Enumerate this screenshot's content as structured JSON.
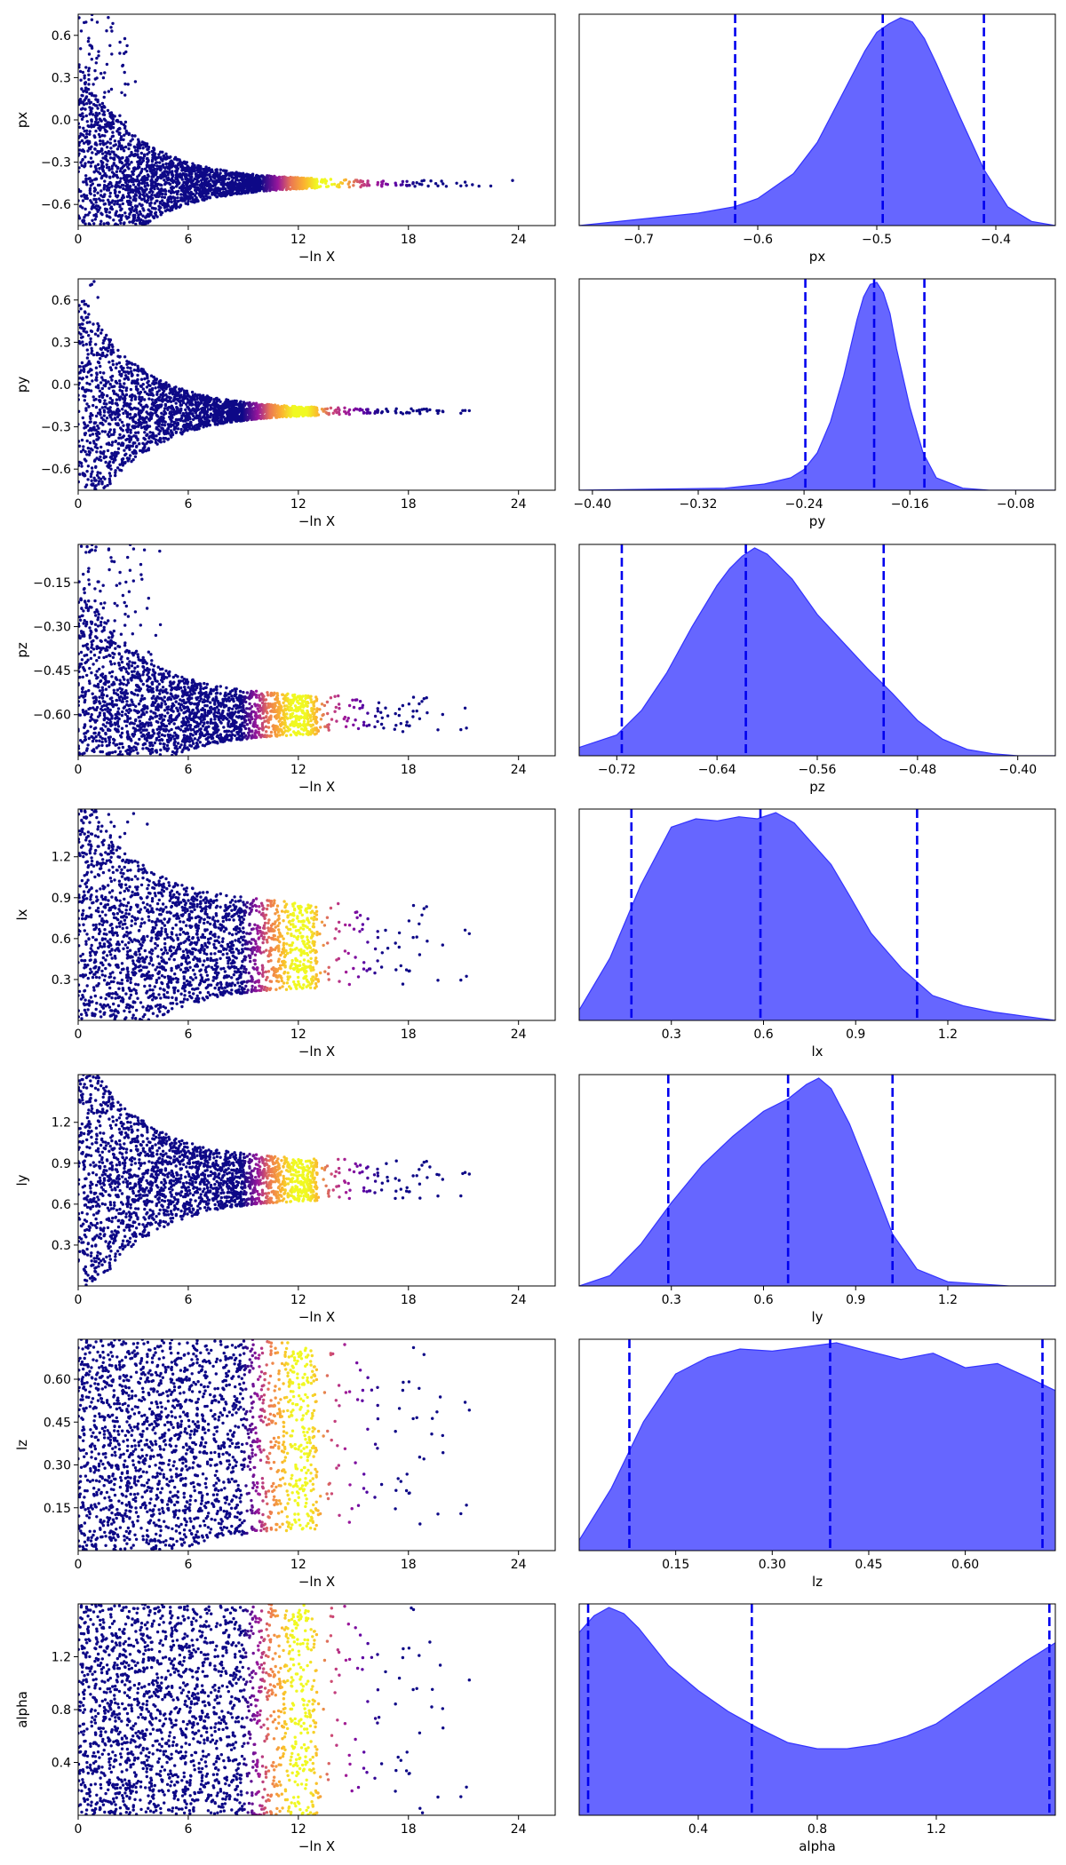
{
  "figure": {
    "colors": {
      "kde_fill": "#6666ff",
      "kde_line": "#3333ff",
      "quantile_line": "#0000ee",
      "colormap": [
        "#0d0887",
        "#5b02a3",
        "#9a179b",
        "#cb4678",
        "#eb7852",
        "#fbb32f",
        "#f0f921"
      ]
    }
  },
  "chart_data": [
    {
      "type": "scatter",
      "param": "px",
      "xlabel": "−ln X",
      "ylabel": "px",
      "xlim": [
        0,
        26
      ],
      "ylim": [
        -0.75,
        0.75
      ],
      "xticks": [
        "0",
        "6",
        "12",
        "18",
        "24"
      ],
      "yticks": [
        "0.6",
        "0.3",
        "0.0",
        "-0.3",
        "-0.6"
      ],
      "ytick_values": [
        0.6,
        0.3,
        0.0,
        -0.3,
        -0.6
      ],
      "converge_value": -0.45,
      "converge_halfwidth": 0.02,
      "grid": false
    },
    {
      "type": "area",
      "param": "px",
      "xlabel": "px",
      "xlim": [
        -0.75,
        -0.35
      ],
      "xticks": [
        "-0.7",
        "-0.6",
        "-0.5",
        "-0.4"
      ],
      "xtick_values": [
        -0.7,
        -0.6,
        -0.5,
        -0.4
      ],
      "quantiles": [
        -0.619,
        -0.495,
        -0.41
      ],
      "density": {
        "x": [
          -0.75,
          -0.7,
          -0.65,
          -0.62,
          -0.6,
          -0.57,
          -0.55,
          -0.53,
          -0.51,
          -0.5,
          -0.49,
          -0.48,
          -0.47,
          -0.46,
          -0.45,
          -0.43,
          -0.41,
          -0.39,
          -0.37,
          -0.35
        ],
        "y": [
          0.0,
          0.03,
          0.06,
          0.09,
          0.13,
          0.25,
          0.4,
          0.62,
          0.84,
          0.93,
          0.97,
          1.0,
          0.98,
          0.9,
          0.78,
          0.52,
          0.27,
          0.09,
          0.02,
          0.0
        ]
      }
    },
    {
      "type": "scatter",
      "param": "py",
      "xlabel": "−ln X",
      "ylabel": "py",
      "xlim": [
        0,
        26
      ],
      "ylim": [
        -0.75,
        0.75
      ],
      "xticks": [
        "0",
        "6",
        "12",
        "18",
        "24"
      ],
      "yticks": [
        "0.6",
        "0.3",
        "0.0",
        "-0.3",
        "-0.6"
      ],
      "ytick_values": [
        0.6,
        0.3,
        0.0,
        -0.3,
        -0.6
      ],
      "converge_value": -0.19,
      "converge_halfwidth": 0.015,
      "grid": false
    },
    {
      "type": "area",
      "param": "py",
      "xlabel": "py",
      "xlim": [
        -0.41,
        -0.05
      ],
      "xticks": [
        "-0.40",
        "-0.32",
        "-0.24",
        "-0.16",
        "-0.08"
      ],
      "xtick_values": [
        -0.4,
        -0.32,
        -0.24,
        -0.16,
        -0.08
      ],
      "quantiles": [
        -0.239,
        -0.187,
        -0.149
      ],
      "density": {
        "x": [
          -0.41,
          -0.3,
          -0.27,
          -0.25,
          -0.24,
          -0.23,
          -0.22,
          -0.21,
          -0.2,
          -0.195,
          -0.19,
          -0.185,
          -0.18,
          -0.175,
          -0.17,
          -0.16,
          -0.15,
          -0.14,
          -0.12,
          -0.1,
          -0.05
        ],
        "y": [
          0.0,
          0.01,
          0.03,
          0.06,
          0.1,
          0.18,
          0.33,
          0.55,
          0.82,
          0.93,
          0.99,
          1.0,
          0.95,
          0.85,
          0.68,
          0.4,
          0.18,
          0.06,
          0.01,
          0.0,
          0.0
        ]
      }
    },
    {
      "type": "scatter",
      "param": "pz",
      "xlabel": "−ln X",
      "ylabel": "pz",
      "xlim": [
        0,
        26
      ],
      "ylim": [
        -0.74,
        -0.02
      ],
      "xticks": [
        "0",
        "6",
        "12",
        "18",
        "24"
      ],
      "yticks": [
        "-0.15",
        "-0.30",
        "-0.45",
        "-0.60"
      ],
      "ytick_values": [
        -0.15,
        -0.3,
        -0.45,
        -0.6
      ],
      "converge_value": -0.6,
      "converge_halfwidth": 0.06,
      "grid": false
    },
    {
      "type": "area",
      "param": "pz",
      "xlabel": "pz",
      "xlim": [
        -0.75,
        -0.37
      ],
      "xticks": [
        "-0.72",
        "-0.64",
        "-0.56",
        "-0.48",
        "-0.40"
      ],
      "xtick_values": [
        -0.72,
        -0.64,
        -0.56,
        -0.48,
        -0.4
      ],
      "quantiles": [
        -0.716,
        -0.617,
        -0.507
      ],
      "density": {
        "x": [
          -0.75,
          -0.72,
          -0.7,
          -0.68,
          -0.66,
          -0.64,
          -0.63,
          -0.62,
          -0.61,
          -0.6,
          -0.58,
          -0.56,
          -0.54,
          -0.52,
          -0.5,
          -0.48,
          -0.46,
          -0.44,
          -0.42,
          -0.4,
          -0.37
        ],
        "y": [
          0.04,
          0.1,
          0.22,
          0.4,
          0.62,
          0.82,
          0.9,
          0.96,
          1.0,
          0.97,
          0.85,
          0.68,
          0.55,
          0.42,
          0.3,
          0.17,
          0.08,
          0.03,
          0.01,
          0.0,
          0.0
        ]
      }
    },
    {
      "type": "scatter",
      "param": "lx",
      "xlabel": "−ln X",
      "ylabel": "lx",
      "xlim": [
        0,
        26
      ],
      "ylim": [
        0.0,
        1.55
      ],
      "xticks": [
        "0",
        "6",
        "12",
        "18",
        "24"
      ],
      "yticks": [
        "1.2",
        "0.9",
        "0.6",
        "0.3"
      ],
      "ytick_values": [
        1.2,
        0.9,
        0.6,
        0.3
      ],
      "converge_value": 0.55,
      "converge_halfwidth": 0.3,
      "grid": false
    },
    {
      "type": "area",
      "param": "lx",
      "xlabel": "lx",
      "xlim": [
        0.0,
        1.55
      ],
      "xticks": [
        "0.3",
        "0.6",
        "0.9",
        "1.2"
      ],
      "xtick_values": [
        0.3,
        0.6,
        0.9,
        1.2
      ],
      "quantiles": [
        0.17,
        0.59,
        1.1
      ],
      "density": {
        "x": [
          0.0,
          0.1,
          0.2,
          0.3,
          0.38,
          0.45,
          0.52,
          0.58,
          0.64,
          0.7,
          0.76,
          0.82,
          0.88,
          0.95,
          1.05,
          1.15,
          1.25,
          1.35,
          1.45,
          1.55
        ],
        "y": [
          0.05,
          0.3,
          0.65,
          0.93,
          0.97,
          0.96,
          0.98,
          0.97,
          1.0,
          0.95,
          0.85,
          0.75,
          0.6,
          0.42,
          0.25,
          0.12,
          0.07,
          0.04,
          0.02,
          0.0
        ]
      }
    },
    {
      "type": "scatter",
      "param": "ly",
      "xlabel": "−ln X",
      "ylabel": "ly",
      "xlim": [
        0,
        26
      ],
      "ylim": [
        0.0,
        1.55
      ],
      "xticks": [
        "0",
        "6",
        "12",
        "18",
        "24"
      ],
      "yticks": [
        "1.2",
        "0.9",
        "0.6",
        "0.3"
      ],
      "ytick_values": [
        1.2,
        0.9,
        0.6,
        0.3
      ],
      "converge_value": 0.78,
      "converge_halfwidth": 0.14,
      "grid": false
    },
    {
      "type": "area",
      "param": "ly",
      "xlabel": "ly",
      "xlim": [
        0.0,
        1.55
      ],
      "xticks": [
        "0.3",
        "0.6",
        "0.9",
        "1.2"
      ],
      "xtick_values": [
        0.3,
        0.6,
        0.9,
        1.2
      ],
      "quantiles": [
        0.29,
        0.68,
        1.02
      ],
      "density": {
        "x": [
          0.0,
          0.1,
          0.2,
          0.3,
          0.4,
          0.5,
          0.6,
          0.68,
          0.74,
          0.78,
          0.82,
          0.88,
          0.95,
          1.02,
          1.1,
          1.2,
          1.3,
          1.4,
          1.55
        ],
        "y": [
          0.0,
          0.05,
          0.2,
          0.4,
          0.58,
          0.72,
          0.84,
          0.9,
          0.97,
          1.0,
          0.95,
          0.78,
          0.52,
          0.25,
          0.08,
          0.02,
          0.01,
          0.0,
          0.0
        ]
      }
    },
    {
      "type": "scatter",
      "param": "lz",
      "xlabel": "−ln X",
      "ylabel": "lz",
      "xlim": [
        0,
        26
      ],
      "ylim": [
        0.0,
        0.74
      ],
      "xticks": [
        "0",
        "6",
        "12",
        "18",
        "24"
      ],
      "yticks": [
        "0.60",
        "0.45",
        "0.30",
        "0.15"
      ],
      "ytick_values": [
        0.6,
        0.45,
        0.3,
        0.15
      ],
      "converge_value": 0.4,
      "converge_halfwidth": 0.32,
      "grid": false
    },
    {
      "type": "area",
      "param": "lz",
      "xlabel": "lz",
      "xlim": [
        0.0,
        0.74
      ],
      "xticks": [
        "0.15",
        "0.30",
        "0.45",
        "0.60"
      ],
      "xtick_values": [
        0.15,
        0.3,
        0.45,
        0.6
      ],
      "quantiles": [
        0.078,
        0.39,
        0.72
      ],
      "density": {
        "x": [
          0.0,
          0.05,
          0.1,
          0.15,
          0.2,
          0.25,
          0.3,
          0.35,
          0.4,
          0.45,
          0.5,
          0.55,
          0.6,
          0.65,
          0.7,
          0.74
        ],
        "y": [
          0.05,
          0.3,
          0.62,
          0.85,
          0.93,
          0.97,
          0.96,
          0.98,
          1.0,
          0.96,
          0.92,
          0.95,
          0.88,
          0.9,
          0.83,
          0.77
        ]
      }
    },
    {
      "type": "scatter",
      "param": "alpha",
      "xlabel": "−ln X",
      "ylabel": "alpha",
      "xlim": [
        0,
        26
      ],
      "ylim": [
        0.0,
        1.6
      ],
      "xticks": [
        "0",
        "6",
        "12",
        "18",
        "24"
      ],
      "yticks": [
        "1.2",
        "0.8",
        "0.4"
      ],
      "ytick_values": [
        1.2,
        0.8,
        0.4
      ],
      "converge_value": 0.8,
      "converge_halfwidth": 0.78,
      "grid": false
    },
    {
      "type": "area",
      "param": "alpha",
      "xlabel": "alpha",
      "xlim": [
        0.0,
        1.6
      ],
      "xticks": [
        "0.4",
        "0.8",
        "1.2"
      ],
      "xtick_values": [
        0.4,
        0.8,
        1.2
      ],
      "quantiles": [
        0.03,
        0.58,
        1.58
      ],
      "density": {
        "x": [
          0.0,
          0.05,
          0.1,
          0.15,
          0.2,
          0.3,
          0.4,
          0.5,
          0.6,
          0.7,
          0.8,
          0.9,
          1.0,
          1.1,
          1.2,
          1.3,
          1.4,
          1.5,
          1.6
        ],
        "y": [
          0.88,
          0.96,
          1.0,
          0.97,
          0.9,
          0.72,
          0.6,
          0.5,
          0.42,
          0.35,
          0.32,
          0.32,
          0.34,
          0.38,
          0.44,
          0.54,
          0.64,
          0.74,
          0.83
        ]
      }
    }
  ]
}
